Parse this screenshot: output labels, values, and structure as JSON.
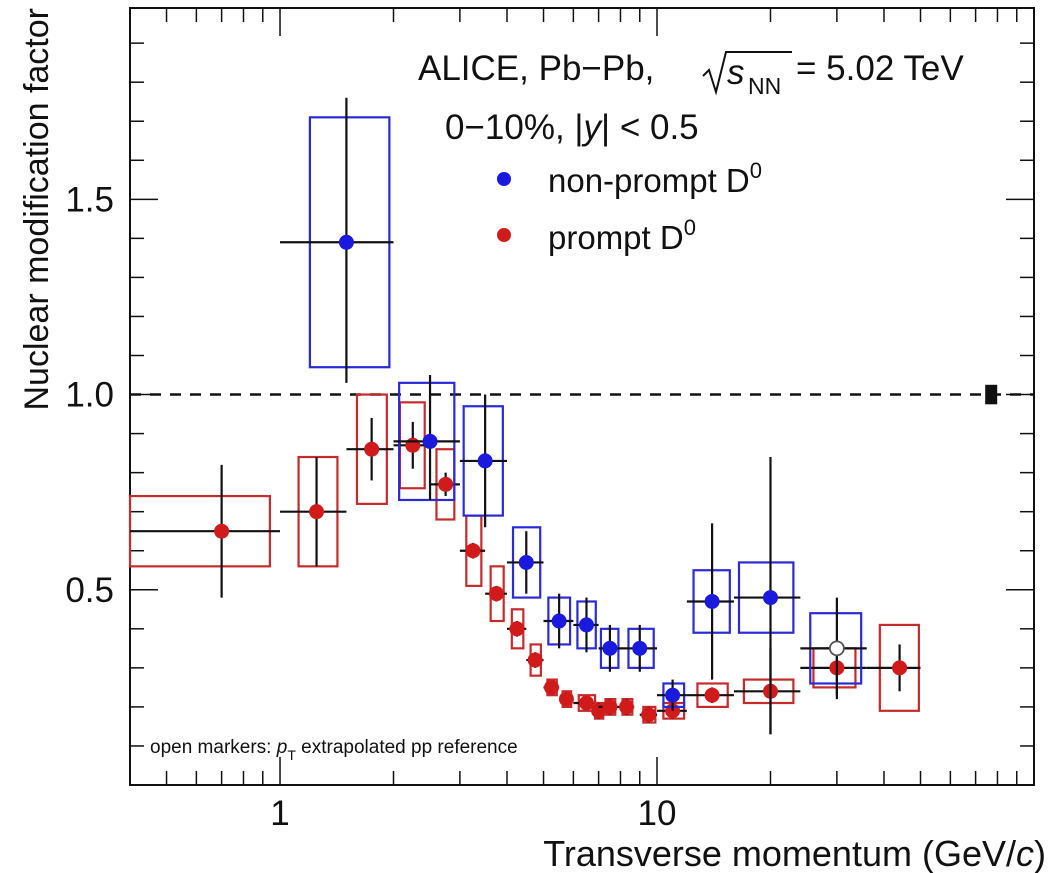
{
  "chart_data": {
    "type": "scatter",
    "title": "",
    "header_line1": "ALICE, Pb−Pb,",
    "header_energy_sym": "s",
    "header_energy_sub": "NN",
    "header_energy_val": "= 5.02 TeV",
    "header_line2_a": "0−10%, |",
    "header_line2_b": "y",
    "header_line2_c": "| < 0.5",
    "xlabel": "Transverse momentum (GeV/",
    "xlabel_italic": "c",
    "xlabel_close": ")",
    "ylabel": "Nuclear modification factor",
    "x_scale": "log",
    "xlim": [
      0.4,
      100
    ],
    "ylim": [
      0.0,
      1.99
    ],
    "reference_line": 1.0,
    "normalization_box": {
      "x": 77,
      "y": 1.0,
      "height": 0.05
    },
    "x_tick_labels": [
      {
        "value": 1,
        "label": "1"
      },
      {
        "value": 10,
        "label": "10"
      }
    ],
    "y_tick_labels": [
      {
        "value": 0.5,
        "label": "0.5"
      },
      {
        "value": 1.0,
        "label": "1.0"
      },
      {
        "value": 1.5,
        "label": "1.5"
      }
    ],
    "note_prefix": "open markers: ",
    "note_sym": "p",
    "note_sub": "T",
    "note_suffix": " extrapolated pp reference",
    "colors": {
      "nonprompt": "#1a1adf",
      "prompt": "#d11a1a",
      "prompt_box": "#c62b2b",
      "nonprompt_box": "#2a2ad6"
    },
    "series": [
      {
        "name": "non-prompt D",
        "name_sup": "0",
        "color": "#1a1adf",
        "points": [
          {
            "x": 1.5,
            "y": 1.39,
            "xlo": 1.0,
            "xhi": 2.0,
            "stat": [
              0.36,
              0.37
            ],
            "sys_w": [
              1.2,
              1.95
            ],
            "sys": [
              0.32,
              0.32
            ]
          },
          {
            "x": 2.5,
            "y": 0.88,
            "xlo": 2.0,
            "xhi": 3.0,
            "stat": [
              0.15,
              0.17
            ],
            "sys_w": [
              2.07,
              2.9
            ],
            "sys": [
              0.15,
              0.15
            ]
          },
          {
            "x": 3.5,
            "y": 0.83,
            "xlo": 3.0,
            "xhi": 4.0,
            "stat": [
              0.17,
              0.17
            ],
            "sys_w": [
              3.07,
              3.9
            ],
            "sys": [
              0.14,
              0.14
            ]
          },
          {
            "x": 4.5,
            "y": 0.57,
            "xlo": 4.0,
            "xhi": 5.0,
            "stat": [
              0.08,
              0.08
            ],
            "sys_w": [
              4.15,
              4.9
            ],
            "sys": [
              0.09,
              0.09
            ]
          },
          {
            "x": 5.5,
            "y": 0.42,
            "xlo": 5.0,
            "xhi": 6.0,
            "stat": [
              0.07,
              0.07
            ],
            "sys_w": [
              5.15,
              5.88
            ],
            "sys": [
              0.06,
              0.06
            ]
          },
          {
            "x": 6.5,
            "y": 0.41,
            "xlo": 6.0,
            "xhi": 7.0,
            "stat": [
              0.07,
              0.07
            ],
            "sys_w": [
              6.15,
              6.88
            ],
            "sys": [
              0.06,
              0.06
            ]
          },
          {
            "x": 7.5,
            "y": 0.35,
            "xlo": 7.0,
            "xhi": 8.0,
            "stat": [
              0.06,
              0.06
            ],
            "sys_w": [
              7.1,
              7.9
            ],
            "sys": [
              0.05,
              0.05
            ]
          },
          {
            "x": 9.0,
            "y": 0.35,
            "xlo": 8.0,
            "xhi": 10.0,
            "stat": [
              0.06,
              0.06
            ],
            "sys_w": [
              8.4,
              9.8
            ],
            "sys": [
              0.05,
              0.05
            ]
          },
          {
            "x": 11.0,
            "y": 0.23,
            "xlo": 10.0,
            "xhi": 12.0,
            "stat": [
              0.04,
              0.04
            ],
            "sys_w": [
              10.4,
              11.8
            ],
            "sys": [
              0.03,
              0.03
            ]
          },
          {
            "x": 14.0,
            "y": 0.47,
            "xlo": 12.0,
            "xhi": 16.0,
            "stat": [
              0.2,
              0.2
            ],
            "sys_w": [
              12.5,
              15.6
            ],
            "sys": [
              0.08,
              0.08
            ]
          },
          {
            "x": 20.0,
            "y": 0.48,
            "xlo": 16.0,
            "xhi": 24.0,
            "stat": [
              0.35,
              0.36
            ],
            "sys_w": [
              16.5,
              23.0
            ],
            "sys": [
              0.09,
              0.09
            ]
          },
          {
            "x": 30.0,
            "y": 0.35,
            "xlo": 24.0,
            "xhi": 36.0,
            "stat": [
              0.13,
              0.13
            ],
            "sys_w": [
              25.5,
              34.8
            ],
            "sys": [
              0.09,
              0.09
            ],
            "open": true
          }
        ]
      },
      {
        "name": "prompt D",
        "name_sup": "0",
        "color": "#d11a1a",
        "points": [
          {
            "x": 0.7,
            "y": 0.65,
            "xlo": 0.4,
            "xhi": 1.0,
            "stat": [
              0.17,
              0.17
            ],
            "sys_w": [
              0.4,
              0.94
            ],
            "sys": [
              0.09,
              0.09
            ]
          },
          {
            "x": 1.25,
            "y": 0.7,
            "xlo": 1.0,
            "xhi": 1.5,
            "stat": [
              0.14,
              0.14
            ],
            "sys_w": [
              1.12,
              1.42
            ],
            "sys": [
              0.14,
              0.14
            ]
          },
          {
            "x": 1.75,
            "y": 0.86,
            "xlo": 1.5,
            "xhi": 2.0,
            "stat": [
              0.08,
              0.08
            ],
            "sys_w": [
              1.6,
              1.92
            ],
            "sys": [
              0.14,
              0.14
            ]
          },
          {
            "x": 2.25,
            "y": 0.87,
            "xlo": 2.0,
            "xhi": 2.5,
            "stat": [
              0.06,
              0.06
            ],
            "sys_w": [
              2.08,
              2.42
            ],
            "sys": [
              0.11,
              0.11
            ]
          },
          {
            "x": 2.75,
            "y": 0.77,
            "xlo": 2.5,
            "xhi": 3.0,
            "stat": [
              0.03,
              0.03
            ],
            "sys_w": [
              2.6,
              2.9
            ],
            "sys": [
              0.09,
              0.09
            ]
          },
          {
            "x": 3.25,
            "y": 0.6,
            "xlo": 3.0,
            "xhi": 3.5,
            "stat": [
              0.02,
              0.02
            ],
            "sys_w": [
              3.12,
              3.42
            ],
            "sys": [
              0.09,
              0.09
            ]
          },
          {
            "x": 3.75,
            "y": 0.49,
            "xlo": 3.5,
            "xhi": 4.0,
            "stat": [
              0.02,
              0.02
            ],
            "sys_w": [
              3.62,
              3.92
            ],
            "sys": [
              0.07,
              0.07
            ]
          },
          {
            "x": 4.25,
            "y": 0.4,
            "xlo": 4.0,
            "xhi": 4.5,
            "stat": [
              0.02,
              0.02
            ],
            "sys_w": [
              4.12,
              4.42
            ],
            "sys": [
              0.05,
              0.05
            ]
          },
          {
            "x": 4.75,
            "y": 0.32,
            "xlo": 4.5,
            "xhi": 5.0,
            "stat": [
              0.02,
              0.02
            ],
            "sys_w": [
              4.62,
              4.92
            ],
            "sys": [
              0.04,
              0.04
            ]
          },
          {
            "x": 5.25,
            "y": 0.25,
            "xlo": 5.0,
            "xhi": 5.5,
            "stat": [
              0.01,
              0.01
            ],
            "sys_w": [
              5.12,
              5.42
            ],
            "sys": [
              0.02,
              0.02
            ]
          },
          {
            "x": 5.75,
            "y": 0.22,
            "xlo": 5.5,
            "xhi": 6.0,
            "stat": [
              0.01,
              0.01
            ],
            "sys_w": [
              5.62,
              5.92
            ],
            "sys": [
              0.02,
              0.02
            ]
          },
          {
            "x": 6.5,
            "y": 0.21,
            "xlo": 6.0,
            "xhi": 7.0,
            "stat": [
              0.01,
              0.01
            ],
            "sys_w": [
              6.2,
              6.85
            ],
            "sys": [
              0.02,
              0.02
            ]
          },
          {
            "x": 7.0,
            "y": 0.19,
            "xlo": 6.8,
            "xhi": 7.2,
            "stat": [
              0.02,
              0.02
            ],
            "sys_w": [
              6.85,
              7.2
            ],
            "sys": [
              0.02,
              0.02
            ]
          },
          {
            "x": 7.5,
            "y": 0.2,
            "xlo": 7.0,
            "xhi": 8.0,
            "stat": [
              0.02,
              0.02
            ],
            "sys_w": [
              7.3,
              7.75
            ],
            "sys": [
              0.02,
              0.02
            ]
          },
          {
            "x": 8.3,
            "y": 0.2,
            "xlo": 8.0,
            "xhi": 8.7,
            "stat": [
              0.02,
              0.02
            ],
            "sys_w": [
              8.1,
              8.6
            ],
            "sys": [
              0.02,
              0.02
            ]
          },
          {
            "x": 9.5,
            "y": 0.18,
            "xlo": 9.0,
            "xhi": 10.0,
            "stat": [
              0.02,
              0.02
            ],
            "sys_w": [
              9.2,
              9.9
            ],
            "sys": [
              0.02,
              0.02
            ]
          },
          {
            "x": 11.0,
            "y": 0.19,
            "xlo": 10.0,
            "xhi": 12.0,
            "stat": [
              0.02,
              0.02
            ],
            "sys_w": [
              10.4,
              11.8
            ],
            "sys": [
              0.02,
              0.02
            ]
          },
          {
            "x": 14.0,
            "y": 0.23,
            "xlo": 12.0,
            "xhi": 16.0,
            "stat": [
              0.02,
              0.02
            ],
            "sys_w": [
              12.8,
              15.4
            ],
            "sys": [
              0.03,
              0.03
            ]
          },
          {
            "x": 20.0,
            "y": 0.24,
            "xlo": 16.0,
            "xhi": 24.0,
            "stat": [
              0.11,
              0.11
            ],
            "sys_w": [
              17.0,
              23.0
            ],
            "sys": [
              0.03,
              0.03
            ]
          },
          {
            "x": 30.0,
            "y": 0.3,
            "xlo": 24.0,
            "xhi": 36.0,
            "stat": [
              0.07,
              0.07
            ],
            "sys_w": [
              26.0,
              33.6
            ],
            "sys": [
              0.05,
              0.05
            ]
          },
          {
            "x": 44.0,
            "y": 0.3,
            "xlo": 36.0,
            "xhi": 50.0,
            "stat": [
              0.06,
              0.06
            ],
            "sys_w": [
              39.0,
              49.5
            ],
            "sys": [
              0.11,
              0.11
            ]
          }
        ]
      }
    ]
  }
}
